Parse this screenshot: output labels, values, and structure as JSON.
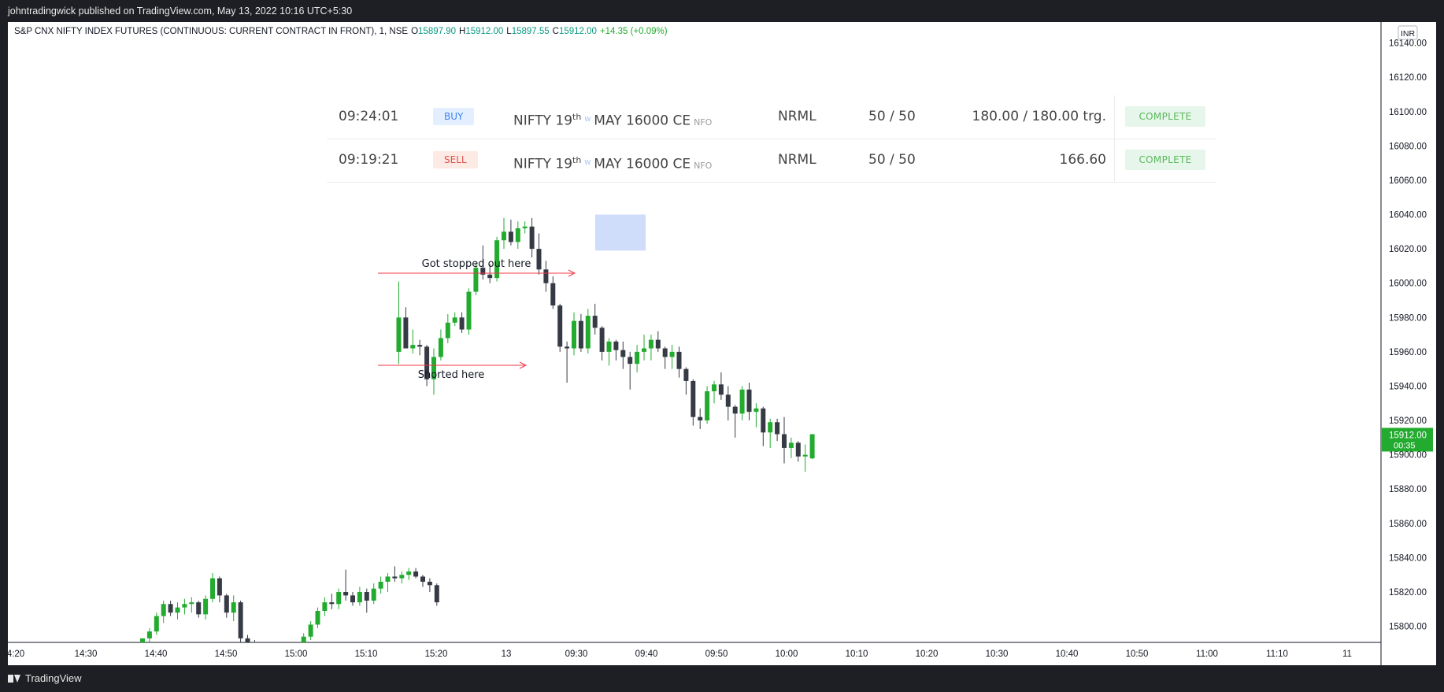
{
  "header": {
    "published_text": "johntradingwick published on TradingView.com, May 13, 2022 10:16 UTC+5:30"
  },
  "legend": {
    "symbol": "S&P CNX NIFTY INDEX FUTURES (CONTINUOUS: CURRENT CONTRACT IN FRONT), 1, NSE",
    "o_label": "O",
    "o": "15897.90",
    "h_label": "H",
    "h": "15912.00",
    "l_label": "L",
    "l": "15897.55",
    "c_label": "C",
    "c": "15912.00",
    "change": "+14.35 (+0.09%)"
  },
  "orders": [
    {
      "time": "09:24:01",
      "side": "BUY",
      "inst": "NIFTY 19",
      "sup": "th",
      "w": "W",
      "rest": "MAY 16000 CE",
      "exchange": "NFO",
      "product": "NRML",
      "qty": "50 / 50",
      "price": "180.00 / 180.00 trg.",
      "status": "COMPLETE"
    },
    {
      "time": "09:19:21",
      "side": "SELL",
      "inst": "NIFTY 19",
      "sup": "th",
      "w": "W",
      "rest": "MAY 16000 CE",
      "exchange": "NFO",
      "product": "NRML",
      "qty": "50 / 50",
      "price": "166.60",
      "status": "COMPLETE"
    }
  ],
  "annotations": {
    "stopped": "Got stopped out here",
    "shorted": "Shorted here"
  },
  "price_label": {
    "value": "15912.00",
    "countdown": "00:35"
  },
  "currency": "INR",
  "footer": {
    "brand": "TradingView"
  },
  "colors": {
    "up": "#22ab2e",
    "down": "#363a45",
    "annotation": "#f23645",
    "highlight": "#a7bff5"
  },
  "chart_data": {
    "type": "candlestick",
    "title": "",
    "ylim": [
      15790,
      16150
    ],
    "y_ticks": [
      "15800.00",
      "15820.00",
      "15840.00",
      "15860.00",
      "15880.00",
      "15900.00",
      "15920.00",
      "15940.00",
      "15960.00",
      "15980.00",
      "16000.00",
      "16020.00",
      "16040.00",
      "16060.00",
      "16080.00",
      "16100.00",
      "16120.00",
      "16140.00"
    ],
    "x_ticks": [
      "4:20",
      "14:30",
      "14:40",
      "14:50",
      "15:00",
      "15:10",
      "15:20",
      "13",
      "09:30",
      "09:40",
      "09:50",
      "10:00",
      "10:10",
      "10:20",
      "10:30",
      "10:40",
      "10:50",
      "11:00",
      "11:10",
      "11"
    ],
    "session1_start": "14:49",
    "session1_ohlc": [
      [
        15790,
        15793,
        15787,
        15793
      ],
      [
        15793,
        15799,
        15789,
        15797
      ],
      [
        15797,
        15808,
        15795,
        15806
      ],
      [
        15806,
        15815,
        15802,
        15813
      ],
      [
        15813,
        15815,
        15806,
        15808
      ],
      [
        15808,
        15814,
        15804,
        15811
      ],
      [
        15811,
        15816,
        15807,
        15813
      ],
      [
        15813,
        15817,
        15808,
        15814
      ],
      [
        15814,
        15815,
        15805,
        15807
      ],
      [
        15807,
        15818,
        15804,
        15816
      ],
      [
        15816,
        15831,
        15814,
        15828
      ],
      [
        15828,
        15829,
        15814,
        15818
      ],
      [
        15818,
        15819,
        15805,
        15808
      ],
      [
        15808,
        15818,
        15803,
        15814
      ],
      [
        15814,
        15815,
        15790,
        15793
      ],
      [
        15793,
        15795,
        15786,
        15790
      ],
      [
        15790,
        15792,
        15784,
        15788
      ],
      [
        15788,
        15790,
        15782,
        15785
      ],
      [
        15785,
        15788,
        15780,
        15783
      ],
      [
        15783,
        15786,
        15779,
        15784
      ],
      [
        15784,
        15790,
        15781,
        15787
      ],
      [
        15787,
        15788,
        15778,
        15780
      ],
      [
        15780,
        15790,
        15777,
        15788
      ],
      [
        15788,
        15796,
        15785,
        15794
      ],
      [
        15794,
        15803,
        15792,
        15801
      ],
      [
        15801,
        15811,
        15799,
        15809
      ],
      [
        15809,
        15817,
        15806,
        15814
      ],
      [
        15814,
        15819,
        15810,
        15813
      ],
      [
        15813,
        15822,
        15810,
        15820
      ],
      [
        15820,
        15833,
        15815,
        15818
      ],
      [
        15818,
        15820,
        15812,
        15814
      ],
      [
        15814,
        15823,
        15812,
        15820
      ],
      [
        15820,
        15822,
        15808,
        15815
      ],
      [
        15815,
        15825,
        15813,
        15822
      ],
      [
        15822,
        15829,
        15819,
        15826
      ],
      [
        15826,
        15831,
        15820,
        15829
      ],
      [
        15829,
        15835,
        15826,
        15828
      ],
      [
        15828,
        15832,
        15825,
        15830
      ],
      [
        15830,
        15834,
        15827,
        15832
      ],
      [
        15832,
        15834,
        15828,
        15829
      ],
      [
        15829,
        15830,
        15823,
        15826
      ],
      [
        15826,
        15828,
        15820,
        15824
      ],
      [
        15824,
        15825,
        15812,
        15814
      ]
    ],
    "session2_start": "09:15",
    "session2_ohlc": [
      [
        15960,
        16001,
        15953,
        15980
      ],
      [
        15980,
        15986,
        15967,
        15962
      ],
      [
        15962,
        15973,
        15959,
        15964
      ],
      [
        15964,
        15967,
        15958,
        15963
      ],
      [
        15963,
        15964,
        15940,
        15944
      ],
      [
        15944,
        15962,
        15935,
        15957
      ],
      [
        15957,
        15973,
        15955,
        15968
      ],
      [
        15968,
        15982,
        15965,
        15977
      ],
      [
        15977,
        15983,
        15975,
        15980
      ],
      [
        15980,
        15983,
        15971,
        15973
      ],
      [
        15973,
        15997,
        15970,
        15995
      ],
      [
        15995,
        16012,
        15993,
        16009
      ],
      [
        16009,
        16022,
        16002,
        16005
      ],
      [
        16005,
        16011,
        16000,
        16003
      ],
      [
        16003,
        16027,
        16001,
        16025
      ],
      [
        16025,
        16038,
        16020,
        16030
      ],
      [
        16030,
        16037,
        16022,
        16024
      ],
      [
        16024,
        16036,
        16020,
        16032
      ],
      [
        16032,
        16036,
        16029,
        16033
      ],
      [
        16033,
        16038,
        16015,
        16020
      ],
      [
        16020,
        16029,
        16005,
        16008
      ],
      [
        16008,
        16013,
        15995,
        16000
      ],
      [
        16000,
        16004,
        15985,
        15987
      ],
      [
        15987,
        15988,
        15960,
        15963
      ],
      [
        15963,
        15966,
        15942,
        15962
      ],
      [
        15962,
        15983,
        15958,
        15978
      ],
      [
        15978,
        15982,
        15960,
        15962
      ],
      [
        15962,
        15985,
        15959,
        15981
      ],
      [
        15981,
        15988,
        15970,
        15974
      ],
      [
        15974,
        15975,
        15955,
        15960
      ],
      [
        15960,
        15968,
        15952,
        15966
      ],
      [
        15966,
        15967,
        15955,
        15961
      ],
      [
        15961,
        15966,
        15950,
        15957
      ],
      [
        15957,
        15960,
        15938,
        15953
      ],
      [
        15953,
        15964,
        15948,
        15960
      ],
      [
        15960,
        15970,
        15955,
        15962
      ],
      [
        15962,
        15970,
        15955,
        15967
      ],
      [
        15967,
        15972,
        15960,
        15962
      ],
      [
        15962,
        15963,
        15950,
        15957
      ],
      [
        15957,
        15964,
        15950,
        15960
      ],
      [
        15960,
        15963,
        15945,
        15950
      ],
      [
        15950,
        15951,
        15935,
        15943
      ],
      [
        15943,
        15944,
        15917,
        15922
      ],
      [
        15922,
        15927,
        15915,
        15920
      ],
      [
        15920,
        15940,
        15918,
        15937
      ],
      [
        15937,
        15943,
        15930,
        15941
      ],
      [
        15941,
        15948,
        15932,
        15935
      ],
      [
        15935,
        15940,
        15920,
        15928
      ],
      [
        15928,
        15929,
        15910,
        15924
      ],
      [
        15924,
        15940,
        15920,
        15938
      ],
      [
        15938,
        15942,
        15920,
        15925
      ],
      [
        15925,
        15930,
        15916,
        15927
      ],
      [
        15927,
        15928,
        15905,
        15913
      ],
      [
        15913,
        15921,
        15904,
        15919
      ],
      [
        15919,
        15921,
        15908,
        15912
      ],
      [
        15912,
        15922,
        15895,
        15904
      ],
      [
        15904,
        15910,
        15898,
        15907
      ],
      [
        15907,
        15908,
        15896,
        15899
      ],
      [
        15899,
        15906,
        15890,
        15900
      ],
      [
        15897.9,
        15912,
        15897.55,
        15912
      ]
    ]
  }
}
